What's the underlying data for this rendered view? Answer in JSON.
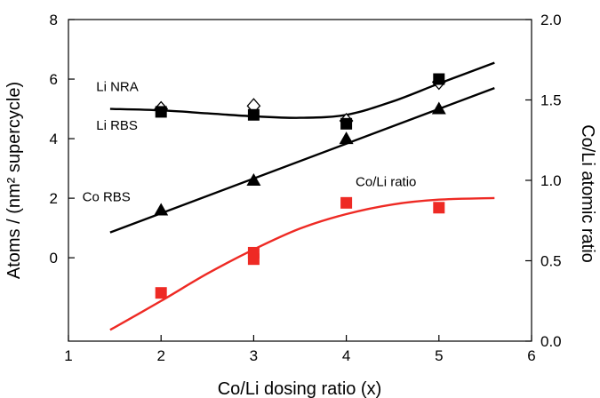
{
  "chart_data": {
    "type": "scatter",
    "xlabel": "Co/Li dosing ratio (x)",
    "ylabel_left": "Atoms / (nm² supercycle)",
    "ylabel_right": "Co/Li atomic ratio",
    "xlim": [
      1,
      6
    ],
    "ylim_left": [
      -2.8,
      8
    ],
    "ylim_right": [
      0,
      2.0
    ],
    "x_ticks": [
      "1",
      "2",
      "3",
      "4",
      "5",
      "6"
    ],
    "y_ticks_left": [
      "0",
      "2",
      "4",
      "6",
      "8"
    ],
    "y_ticks_right": [
      "0.0",
      "0.5",
      "1.0",
      "1.5",
      "2.0"
    ],
    "grid": false,
    "series": [
      {
        "name": "Li NRA",
        "axis": "left",
        "marker": "diamond-open",
        "color": "#000000",
        "x": [
          2,
          3,
          4,
          5
        ],
        "y": [
          5.0,
          5.1,
          4.6,
          5.9
        ],
        "fit": {
          "x": [
            1.45,
            2,
            2.5,
            3,
            3.5,
            4,
            4.5,
            5,
            5.6
          ],
          "y": [
            5.0,
            4.95,
            4.85,
            4.75,
            4.7,
            4.8,
            5.25,
            5.85,
            6.55
          ]
        }
      },
      {
        "name": "Li RBS",
        "axis": "left",
        "marker": "square-filled",
        "color": "#000000",
        "x": [
          2,
          3,
          4,
          5
        ],
        "y": [
          4.9,
          4.8,
          4.5,
          6.0
        ]
      },
      {
        "name": "Co RBS",
        "axis": "left",
        "marker": "triangle-filled",
        "color": "#000000",
        "x": [
          2,
          3,
          4,
          5
        ],
        "y": [
          1.6,
          2.6,
          4.0,
          5.0
        ],
        "fit": {
          "x": [
            1.45,
            5.6
          ],
          "y": [
            0.85,
            5.7
          ]
        }
      },
      {
        "name": "Co/Li ratio",
        "axis": "right",
        "marker": "square-filled",
        "color": "#ee2a24",
        "x": [
          2,
          3,
          3,
          4,
          5
        ],
        "y": [
          0.3,
          0.55,
          0.51,
          0.86,
          0.83
        ],
        "fit": {
          "x": [
            1.45,
            2,
            2.5,
            3,
            3.5,
            4,
            4.5,
            5,
            5.6
          ],
          "y": [
            0.07,
            0.25,
            0.42,
            0.57,
            0.7,
            0.79,
            0.85,
            0.88,
            0.89
          ]
        }
      }
    ],
    "annotations": [
      {
        "text": "Li NRA",
        "x": 1.3,
        "y": 5.6
      },
      {
        "text": "Li RBS",
        "x": 1.3,
        "y": 4.3
      },
      {
        "text": "Co RBS",
        "x": 1.15,
        "y": 1.9
      },
      {
        "text": "Co/Li ratio",
        "x": 4.1,
        "y": 2.4
      }
    ]
  }
}
